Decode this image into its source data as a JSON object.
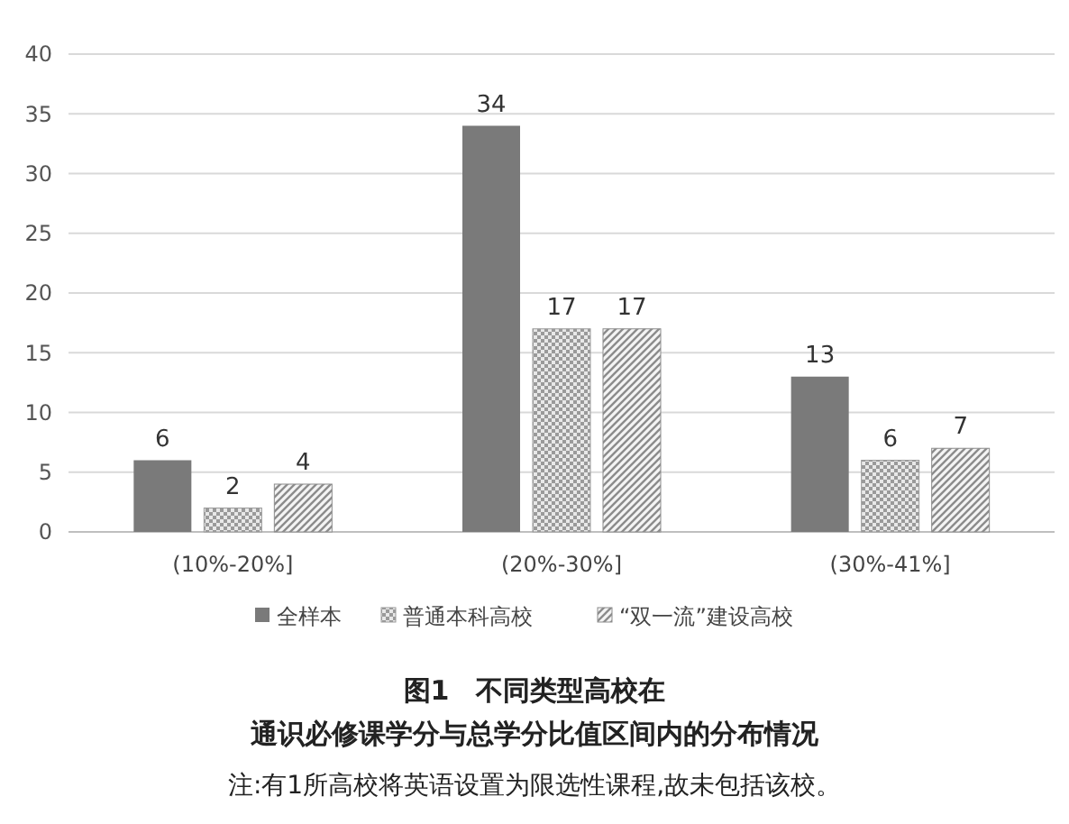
{
  "chart_data": {
    "type": "bar",
    "title": "图1　不同类型高校在",
    "subtitle": "通识必修课学分与总学分比值区间内的分布情况",
    "annotations": [
      "注:有1所高校将英语设置为限选性课程,故未包括该校。"
    ],
    "categories": [
      "(10%-20%]",
      "(20%-30%]",
      "(30%-41%]"
    ],
    "series": [
      {
        "name": "全样本",
        "color": "#7a7a7a",
        "values": [
          6,
          34,
          13
        ]
      },
      {
        "name": "普通本科高校",
        "color": "#9a9a9a",
        "values": [
          2,
          17,
          6
        ]
      },
      {
        "name": "“双一流”建设高校",
        "color": "#8c8c8c",
        "values": [
          4,
          17,
          7
        ]
      }
    ],
    "ylim": [
      0,
      40
    ],
    "yticks": [
      0,
      5,
      10,
      15,
      20,
      25,
      30,
      35,
      40
    ],
    "grid": "y",
    "legend": "bottom",
    "data_labels": true
  }
}
